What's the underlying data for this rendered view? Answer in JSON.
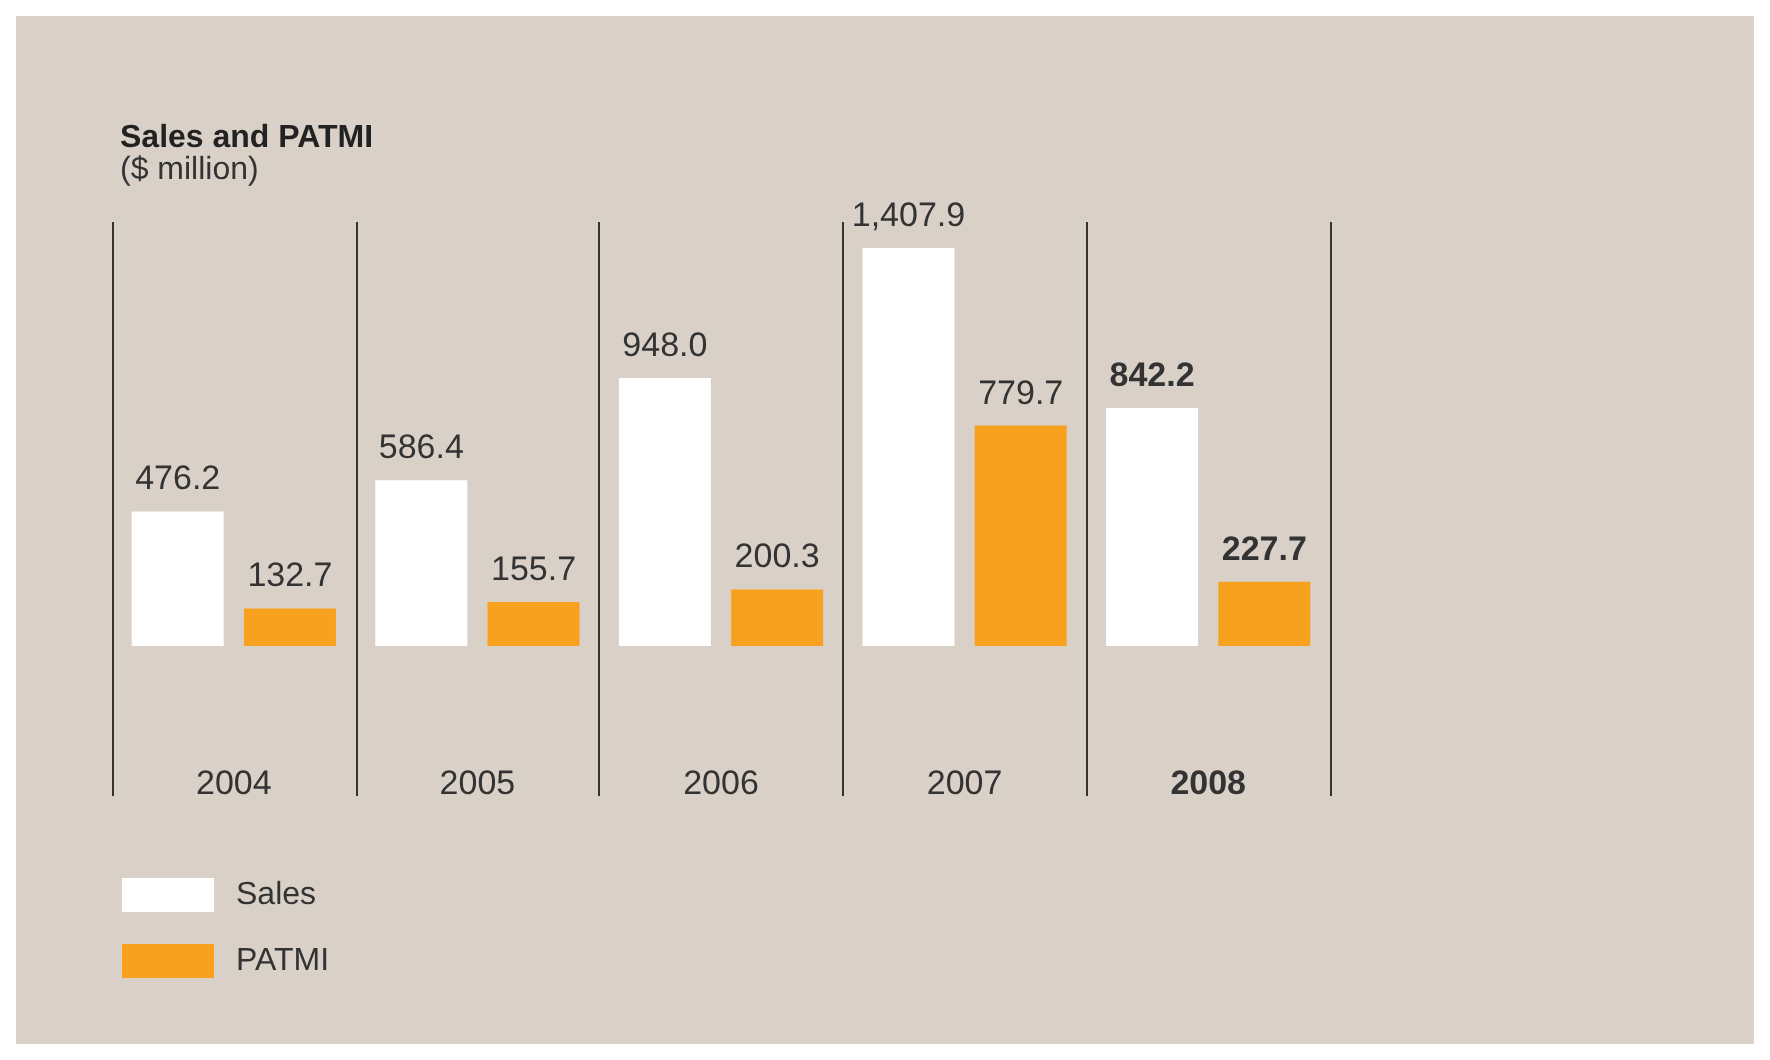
{
  "chart_data": {
    "type": "bar",
    "title": "Sales and PATMI",
    "subtitle": "($ million)",
    "categories": [
      "2004",
      "2005",
      "2006",
      "2007",
      "2008"
    ],
    "series": [
      {
        "name": "Sales",
        "color": "#ffffff",
        "values": [
          476.2,
          586.4,
          948.0,
          1407.9,
          842.2
        ],
        "value_labels": [
          "476.2",
          "586.4",
          "948.0",
          "1,407.9",
          "842.2"
        ]
      },
      {
        "name": "PATMI",
        "color": "#f7a11e",
        "values": [
          132.7,
          155.7,
          200.3,
          779.7,
          227.7
        ],
        "value_labels": [
          "132.7",
          "155.7",
          "200.3",
          "779.7",
          "227.7"
        ]
      }
    ],
    "grid": "x",
    "legend": "bottom left"
  }
}
